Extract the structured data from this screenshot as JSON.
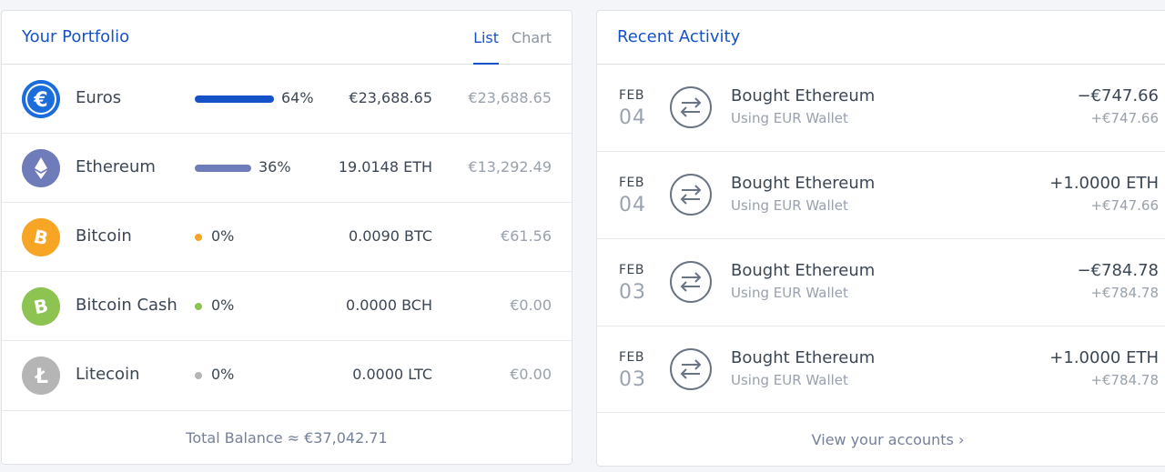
{
  "portfolio": {
    "title": "Your Portfolio",
    "tabs": [
      {
        "label": "List",
        "active": true
      },
      {
        "label": "Chart",
        "active": false
      }
    ],
    "assets": [
      {
        "name": "Euros",
        "icon": "euro-icon",
        "color": "#1b6ddc",
        "share_percent": 64,
        "pct_label": "64%",
        "bar_color": "#1652c7",
        "amount": "€23,688.65",
        "value": "€23,688.65"
      },
      {
        "name": "Ethereum",
        "icon": "ethereum-icon",
        "color": "#6f7cba",
        "share_percent": 36,
        "pct_label": "36%",
        "bar_color": "#6f7cba",
        "amount": "19.0148 ETH",
        "value": "€13,292.49"
      },
      {
        "name": "Bitcoin",
        "icon": "bitcoin-icon",
        "color": "#f7a524",
        "share_percent": 0,
        "pct_label": "0%",
        "bar_color": "#f7a524",
        "amount": "0.0090 BTC",
        "value": "€61.56"
      },
      {
        "name": "Bitcoin Cash",
        "icon": "bitcoin-cash-icon",
        "color": "#8dc351",
        "share_percent": 0,
        "pct_label": "0%",
        "bar_color": "#8dc351",
        "amount": "0.0000 BCH",
        "value": "€0.00"
      },
      {
        "name": "Litecoin",
        "icon": "litecoin-icon",
        "color": "#b5b5b5",
        "share_percent": 0,
        "pct_label": "0%",
        "bar_color": "#b5b5b5",
        "amount": "0.0000 LTC",
        "value": "€0.00"
      }
    ],
    "total": "Total Balance ≈ €37,042.71"
  },
  "activity": {
    "title": "Recent Activity",
    "items": [
      {
        "month": "FEB",
        "day": "04",
        "title": "Bought Ethereum",
        "subtitle": "Using EUR Wallet",
        "amount": "−€747.66",
        "native": "+€747.66"
      },
      {
        "month": "FEB",
        "day": "04",
        "title": "Bought Ethereum",
        "subtitle": "Using EUR Wallet",
        "amount": "+1.0000 ETH",
        "native": "+€747.66"
      },
      {
        "month": "FEB",
        "day": "03",
        "title": "Bought Ethereum",
        "subtitle": "Using EUR Wallet",
        "amount": "−€784.78",
        "native": "+€784.78"
      },
      {
        "month": "FEB",
        "day": "03",
        "title": "Bought Ethereum",
        "subtitle": "Using EUR Wallet",
        "amount": "+1.0000 ETH",
        "native": "+€784.78"
      }
    ],
    "footer_link": "View your accounts ›"
  },
  "colors": {
    "accent": "#1652c7",
    "muted_text": "#98a1ad"
  }
}
